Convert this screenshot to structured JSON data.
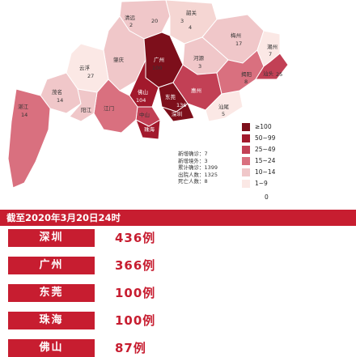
{
  "map": {
    "labels": [
      "20",
      "清远",
      "2",
      "3",
      "韶关",
      "4",
      "梅州",
      "17",
      "揭阳",
      "8",
      "潮州",
      "7",
      "汕头",
      "25",
      "河源",
      "3",
      "惠州",
      "肇庆",
      "广州",
      "佛山",
      "东莞",
      "深圳",
      "江门",
      "中山",
      "珠海",
      "阳江",
      "茂名",
      "湛江",
      "云浮",
      "汕尾",
      "5",
      "14",
      "14",
      "100",
      "136",
      "27",
      "104"
    ]
  },
  "stats": {
    "lines": [
      "新增确诊：7",
      "新增境外：3",
      "累计确诊：1399",
      "出院人数：1325",
      "死亡人数：8"
    ]
  },
  "legend": {
    "items": [
      {
        "label": "≥100",
        "color": "#7d0f1b"
      },
      {
        "label": "50~99",
        "color": "#a2192c"
      },
      {
        "label": "25~49",
        "color": "#c24055"
      },
      {
        "label": "15~24",
        "color": "#d9707f"
      },
      {
        "label": "10~14",
        "color": "#f0c7c9"
      },
      {
        "label": "1~9",
        "color": "#fbe8e5"
      }
    ],
    "zero_label": "0"
  },
  "banner": {
    "text": "截至2020年3月20日24时"
  },
  "ranking": {
    "cities": [
      {
        "name": "深圳",
        "value": "436例",
        "fill_pct": 100
      },
      {
        "name": "广州",
        "value": "366例",
        "fill_pct": 100
      },
      {
        "name": "东莞",
        "value": "100例",
        "fill_pct": 100
      },
      {
        "name": "珠海",
        "value": "100例",
        "fill_pct": 100
      },
      {
        "name": "佛山",
        "value": "87例",
        "fill_pct": 100
      }
    ]
  }
}
